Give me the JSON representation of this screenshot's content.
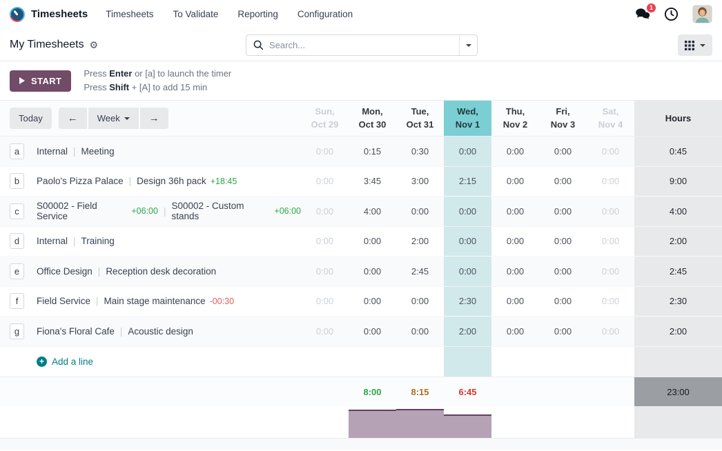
{
  "colors": {
    "brand_purple": "#714B67",
    "accent_teal": "#017E84",
    "highlight_header": "#7BCED3",
    "highlight_cell": "#D1E9EB",
    "hours_bg": "#E8E9EB",
    "total_hours_bg": "#9B9EA3",
    "green": "#28A745",
    "amber": "#A9701F",
    "red": "#D9342B",
    "soft_red": "#E05F63",
    "badge_red": "#E7414E",
    "bar_fill": "#B5A2B5",
    "bar_top": "#5F4060"
  },
  "navbar": {
    "brand": "Timesheets",
    "menu_items": [
      "Timesheets",
      "To Validate",
      "Reporting",
      "Configuration"
    ],
    "message_count": "1"
  },
  "control_panel": {
    "breadcrumb": "My Timesheets",
    "search_placeholder": "Search..."
  },
  "timer": {
    "start_label": "START",
    "help_lines": [
      {
        "pre": "Press ",
        "key": "Enter",
        "post": " or [a] to launch the timer"
      },
      {
        "pre": "Press ",
        "key": "Shift",
        "post": " + [A] to add 15 min"
      }
    ]
  },
  "grid": {
    "today_label": "Today",
    "range_label": "Week",
    "prev_icon": "←",
    "next_icon": "→",
    "hours_header": "Hours",
    "columns": [
      {
        "day": "Sun,",
        "date": "Oct 29",
        "muted": true
      },
      {
        "day": "Mon,",
        "date": "Oct 30"
      },
      {
        "day": "Tue,",
        "date": "Oct 31"
      },
      {
        "day": "Wed,",
        "date": "Nov 1",
        "highlight": true
      },
      {
        "day": "Thu,",
        "date": "Nov 2"
      },
      {
        "day": "Fri,",
        "date": "Nov 3"
      },
      {
        "day": "Sat,",
        "date": "Nov 4",
        "muted": true
      }
    ],
    "rows": [
      {
        "key": "a",
        "project": "Internal",
        "task": "Meeting",
        "cells": [
          "0:00",
          "0:15",
          "0:30",
          "0:00",
          "0:00",
          "0:00",
          "0:00"
        ],
        "total": "0:45"
      },
      {
        "key": "b",
        "project": "Paolo's Pizza Palace",
        "task": "Design 36h pack",
        "task_extra": "+18:45",
        "task_extra_color": "green",
        "cells": [
          "0:00",
          "3:45",
          "3:00",
          "2:15",
          "0:00",
          "0:00",
          "0:00"
        ],
        "total": "9:00"
      },
      {
        "key": "c",
        "project": "S00002 - Field Service",
        "project_extra": "+06:00",
        "project_extra_color": "green",
        "task": "S00002 - Custom stands",
        "task_extra": "+06:00",
        "task_extra_color": "green",
        "cells": [
          "0:00",
          "4:00",
          "0:00",
          "0:00",
          "0:00",
          "0:00",
          "0:00"
        ],
        "total": "4:00"
      },
      {
        "key": "d",
        "project": "Internal",
        "task": "Training",
        "cells": [
          "0:00",
          "0:00",
          "2:00",
          "0:00",
          "0:00",
          "0:00",
          "0:00"
        ],
        "total": "2:00"
      },
      {
        "key": "e",
        "project": "Office Design",
        "task": "Reception desk decoration",
        "cells": [
          "0:00",
          "0:00",
          "2:45",
          "0:00",
          "0:00",
          "0:00",
          "0:00"
        ],
        "total": "2:45"
      },
      {
        "key": "f",
        "project": "Field Service",
        "task": "Main stage maintenance",
        "task_extra": "-00:30",
        "task_extra_color": "soft_red",
        "cells": [
          "0:00",
          "0:00",
          "0:00",
          "2:30",
          "0:00",
          "0:00",
          "0:00"
        ],
        "total": "2:30"
      },
      {
        "key": "g",
        "project": "Fiona's Floral Cafe",
        "task": "Acoustic design",
        "cells": [
          "0:00",
          "0:00",
          "0:00",
          "2:00",
          "0:00",
          "0:00",
          "0:00"
        ],
        "total": "2:00"
      }
    ],
    "add_line_label": "Add a line",
    "day_totals": [
      {
        "value": ""
      },
      {
        "value": "8:00",
        "color": "green"
      },
      {
        "value": "8:15",
        "color": "amber"
      },
      {
        "value": "6:45",
        "color": "red"
      },
      {
        "value": ""
      },
      {
        "value": ""
      },
      {
        "value": ""
      }
    ],
    "week_total": "23:00"
  },
  "chart_data": {
    "type": "bar",
    "categories": [
      "Sun, Oct 29",
      "Mon, Oct 30",
      "Tue, Oct 31",
      "Wed, Nov 1",
      "Thu, Nov 2",
      "Fri, Nov 3",
      "Sat, Nov 4"
    ],
    "values": [
      0,
      8.0,
      8.25,
      6.75,
      0,
      0,
      0
    ],
    "value_labels": [
      "",
      "8:00",
      "8:15",
      "6:45",
      "",
      "",
      ""
    ],
    "title": "",
    "xlabel": "",
    "ylabel": "",
    "ylim": [
      0,
      8.25
    ],
    "legend": false,
    "bar_color": "#B5A2B5"
  }
}
